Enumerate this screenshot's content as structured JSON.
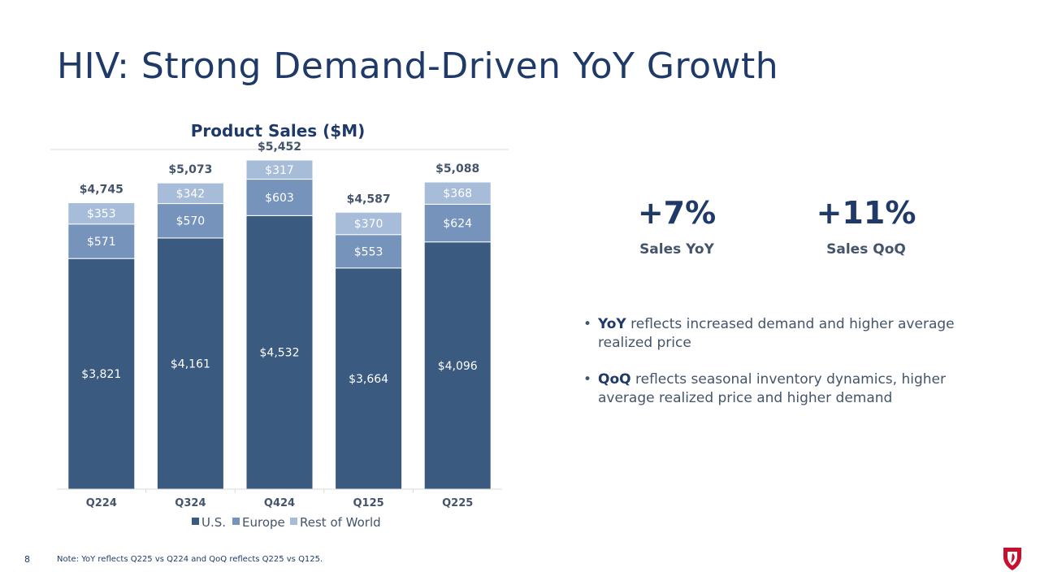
{
  "title": "HIV: Strong Demand-Driven YoY Growth",
  "chart_data": {
    "type": "bar",
    "stacked": true,
    "title": "Product Sales ($M)",
    "categories": [
      "Q224",
      "Q324",
      "Q424",
      "Q125",
      "Q225"
    ],
    "series": [
      {
        "name": "U.S.",
        "values": [
          3821,
          4161,
          4532,
          3664,
          4096
        ],
        "labels": [
          "$3,821",
          "$4,161",
          "$4,532",
          "$3,664",
          "$4,096"
        ],
        "color": "#3b5a80"
      },
      {
        "name": "Europe",
        "values": [
          571,
          570,
          603,
          553,
          624
        ],
        "labels": [
          "$571",
          "$570",
          "$603",
          "$553",
          "$624"
        ],
        "color": "#7593bb"
      },
      {
        "name": "Rest of World",
        "values": [
          353,
          342,
          317,
          370,
          368
        ],
        "labels": [
          "$353",
          "$342",
          "$317",
          "$370",
          "$368"
        ],
        "color": "#a6bcd8"
      }
    ],
    "totals": [
      4745,
      5073,
      5452,
      4587,
      5088
    ],
    "total_labels": [
      "$4,745",
      "$5,073",
      "$5,452",
      "$4,587",
      "$5,088"
    ],
    "ylim": [
      0,
      5600
    ],
    "legend": "bottom",
    "grid": false
  },
  "stats": [
    {
      "value": "+7%",
      "label": "Sales YoY"
    },
    {
      "value": "+11%",
      "label": "Sales QoQ"
    }
  ],
  "bullets": [
    {
      "bold": "YoY",
      "text": " reflects increased demand and higher average realized price"
    },
    {
      "bold": "QoQ",
      "text": " reflects seasonal inventory dynamics, higher average realized price and higher demand"
    }
  ],
  "footer": {
    "page_number": "8",
    "note": "Note: YoY reflects Q225 vs Q224 and QoQ reflects Q225 vs Q125."
  },
  "colors": {
    "title": "#1f3a68",
    "body_text": "#44546a",
    "logo": "#c8102e"
  },
  "logo_icon": "company-shield-logo"
}
